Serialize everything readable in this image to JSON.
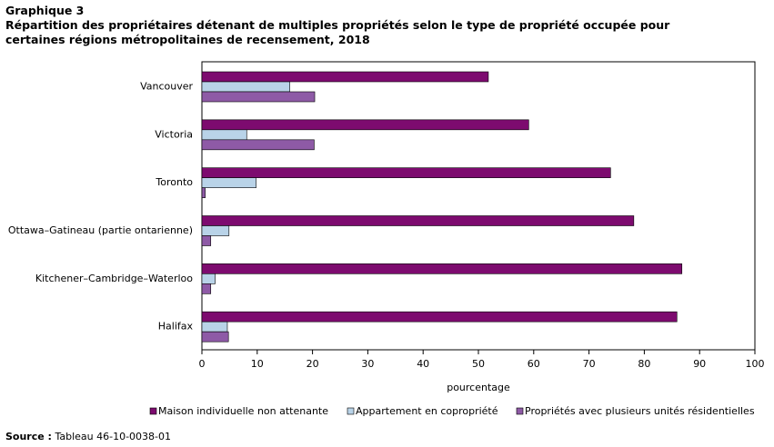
{
  "chart_data": {
    "type": "hbar",
    "label": "Graphique  3",
    "title": "Répartition  des propriétaires  détenant de multiples propriétés  selon le type de propriété  occupée pour certaines régions métropolitaines  de recensement, 2018",
    "categories": [
      "Vancouver",
      "Victoria",
      "Toronto",
      "Ottawa–Gatineau (partie ontarienne)",
      "Kitchener–Cambridge–Waterloo",
      "Halifax"
    ],
    "series": [
      {
        "name": "Maison individuelle non attenante",
        "color": "#7d0b6f",
        "values": [
          51.8,
          59.1,
          73.9,
          78.1,
          86.8,
          85.9
        ]
      },
      {
        "name": "Appartement en copropriété",
        "color": "#b9d3e8",
        "values": [
          15.9,
          8.1,
          9.8,
          4.9,
          2.4,
          4.6
        ]
      },
      {
        "name": "Propriétés avec plusieurs unités  résidentielles",
        "color": "#8e5aa6",
        "values": [
          20.4,
          20.3,
          0.6,
          1.6,
          1.6,
          4.8
        ]
      }
    ],
    "xlim": [
      0,
      100
    ],
    "xticks": [
      0,
      10,
      20,
      30,
      40,
      50,
      60,
      70,
      80,
      90,
      100
    ],
    "x_label": "pourcentage",
    "source_label": "Source :",
    "source": "Tableau 46-10-0038-01"
  }
}
